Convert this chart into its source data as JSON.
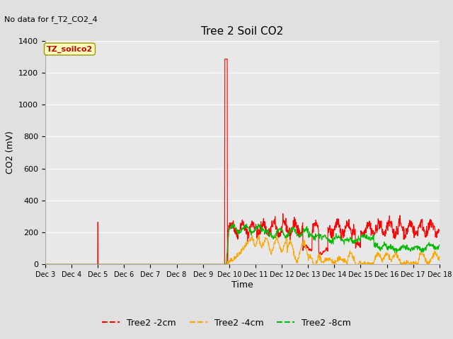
{
  "title": "Tree 2 Soil CO2",
  "no_data_text": "No data for f_T2_CO2_4",
  "ylabel": "CO2 (mV)",
  "xlabel": "Time",
  "annotation_text": "TZ_soilco2",
  "ylim": [
    0,
    1400
  ],
  "xlim_days": [
    3,
    18
  ],
  "x_tick_labels": [
    "Dec 3",
    "Dec 4",
    "Dec 5",
    "Dec 6",
    "Dec 7",
    "Dec 8",
    "Dec 9",
    "Dec 10",
    "Dec 11",
    "Dec 12",
    "Dec 13",
    "Dec 14",
    "Dec 15",
    "Dec 16",
    "Dec 17",
    "Dec 18"
  ],
  "background_color": "#e0e0e0",
  "plot_bg_color": "#e8e8e8",
  "grid_color": "#ffffff",
  "series": [
    {
      "label": "Tree2 -2cm",
      "color": "#ff0000"
    },
    {
      "label": "Tree2 -4cm",
      "color": "#ffa500"
    },
    {
      "label": "Tree2 -8cm",
      "color": "#00bb00"
    }
  ],
  "annotation_color": "#cc0000",
  "annotation_bg": "#ffffc0",
  "annotation_edge": "#999900"
}
